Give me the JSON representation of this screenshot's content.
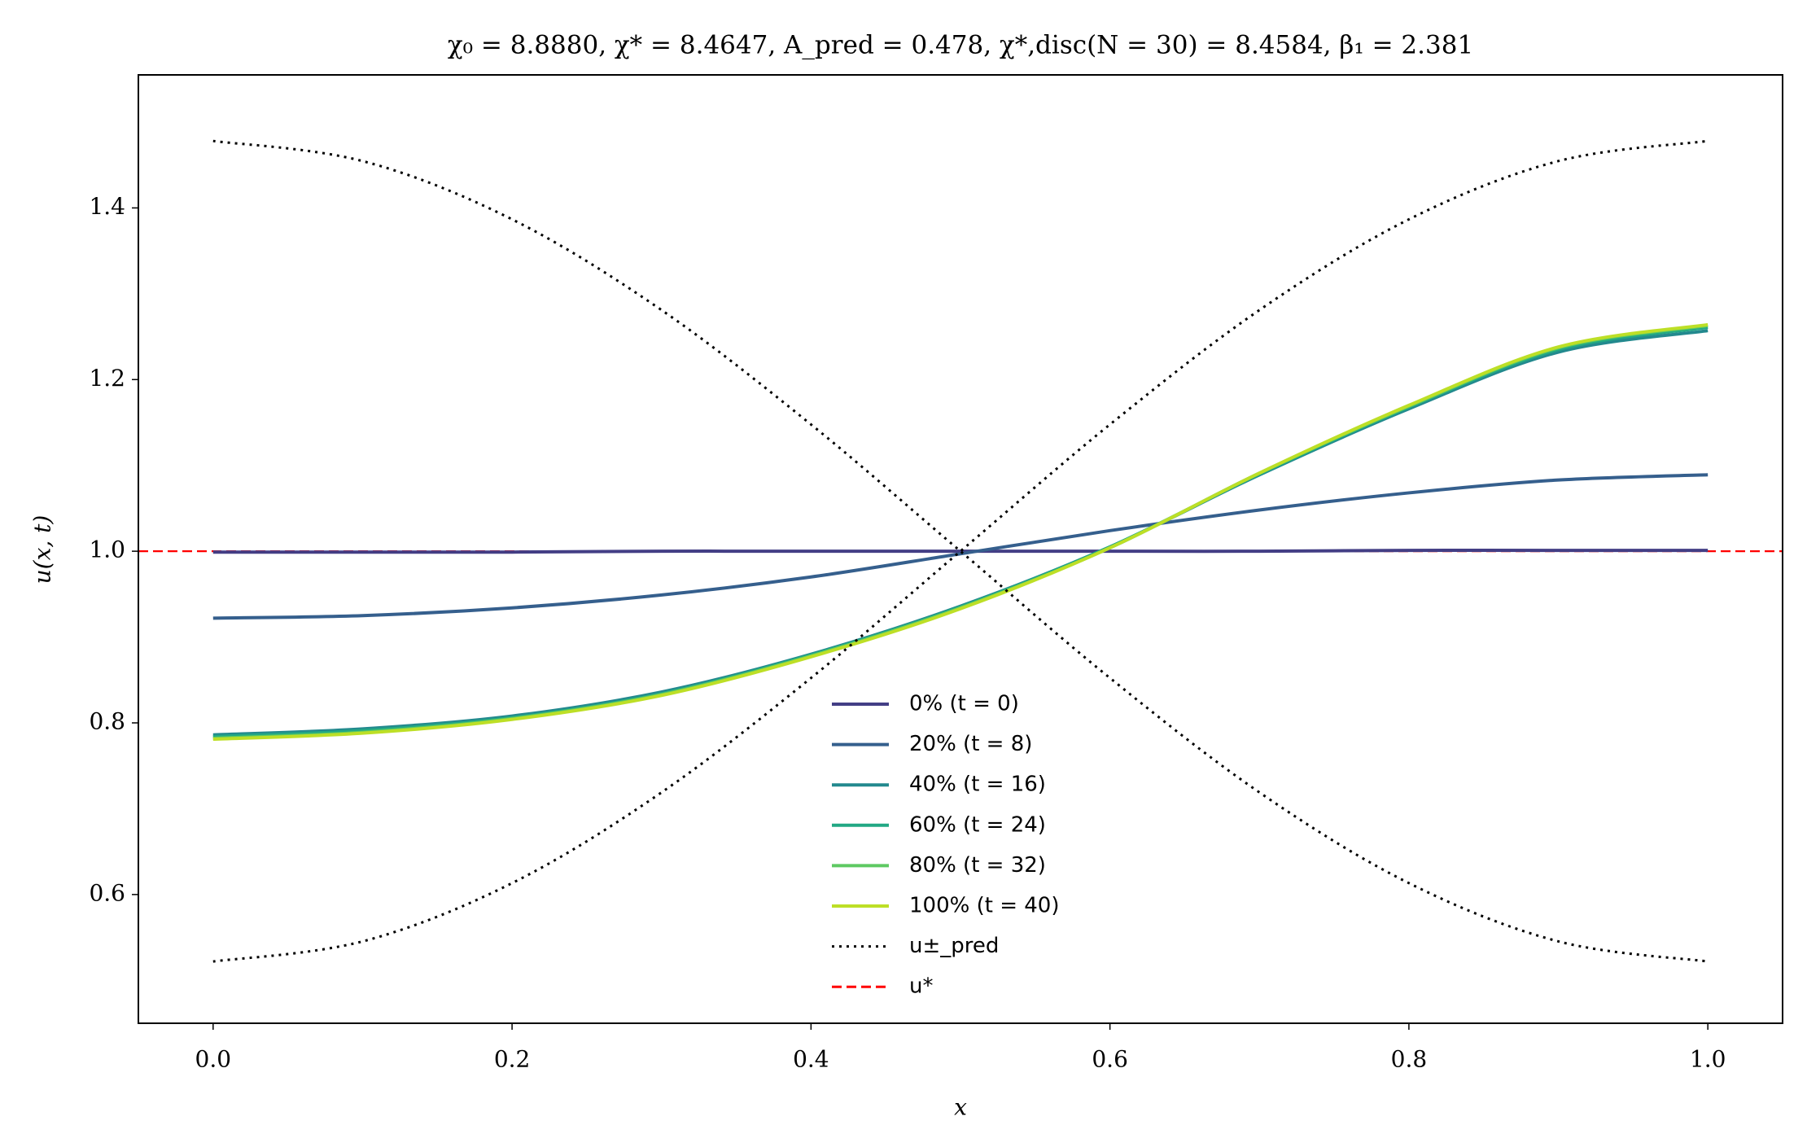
{
  "chart_data": {
    "type": "line",
    "title": "χ₀ = 8.8880,  χ* = 8.4647,  A_pred = 0.478,  χ*,disc(N = 30) = 8.4584,  β₁ = 2.381",
    "x_label": "x",
    "y_label": "u(x, t)",
    "x": [
      0.0,
      0.1,
      0.2,
      0.3,
      0.4,
      0.5,
      0.6,
      0.7,
      0.8,
      0.9,
      1.0
    ],
    "xlim": [
      -0.05,
      1.05
    ],
    "ylim": [
      0.45,
      1.555
    ],
    "xticks": [
      {
        "value": 0,
        "label": "0.0"
      },
      0.2,
      0.4,
      0.6,
      0.8,
      {
        "value": 1,
        "label": "1.0"
      }
    ],
    "yticks": [
      0.6,
      0.8,
      {
        "value": 1,
        "label": "1.0"
      },
      1.2,
      1.4
    ],
    "grid": false,
    "legend": "lower center",
    "series": [
      {
        "name": "0% (t = 0)",
        "color": "#433e85",
        "style": "solid",
        "values": [
          0.999,
          0.999,
          0.999,
          1.0,
          1.0,
          1.0,
          1.0,
          1.0,
          1.001,
          1.001,
          1.001
        ]
      },
      {
        "name": "20% (t = 8)",
        "color": "#355f8d",
        "style": "solid",
        "values": [
          0.922,
          0.925,
          0.934,
          0.949,
          0.97,
          0.997,
          1.024,
          1.048,
          1.068,
          1.083,
          1.089
        ]
      },
      {
        "name": "40% (t = 16)",
        "color": "#23898e",
        "style": "solid",
        "values": [
          0.786,
          0.793,
          0.808,
          0.836,
          0.88,
          0.936,
          1.005,
          1.089,
          1.166,
          1.232,
          1.257
        ]
      },
      {
        "name": "60% (t = 24)",
        "color": "#22a884",
        "style": "solid",
        "values": [
          0.784,
          0.791,
          0.806,
          0.834,
          0.879,
          0.935,
          1.005,
          1.09,
          1.168,
          1.235,
          1.261
        ]
      },
      {
        "name": "80% (t = 32)",
        "color": "#5ec962",
        "style": "solid",
        "values": [
          0.782,
          0.789,
          0.805,
          0.833,
          0.878,
          0.934,
          1.004,
          1.091,
          1.169,
          1.237,
          1.263
        ]
      },
      {
        "name": "100% (t = 40)",
        "color": "#bddf26",
        "style": "solid",
        "values": [
          0.781,
          0.788,
          0.804,
          0.832,
          0.877,
          0.933,
          1.004,
          1.091,
          1.17,
          1.238,
          1.264
        ]
      },
      {
        "name": "u±_pred",
        "color": "#000000",
        "style": "dotted",
        "values": [
          1.478,
          1.4546,
          1.3867,
          1.281,
          1.1477,
          1.0,
          0.8523,
          0.719,
          0.6133,
          0.5454,
          0.522
        ],
        "values_mirror": [
          0.522,
          0.5454,
          0.6133,
          0.719,
          0.8523,
          1.0,
          1.1477,
          1.281,
          1.3867,
          1.4546,
          1.478
        ]
      }
    ],
    "reference_line": {
      "name": "u*",
      "value": 1.0,
      "color": "#ff0000",
      "style": "dashed"
    }
  }
}
